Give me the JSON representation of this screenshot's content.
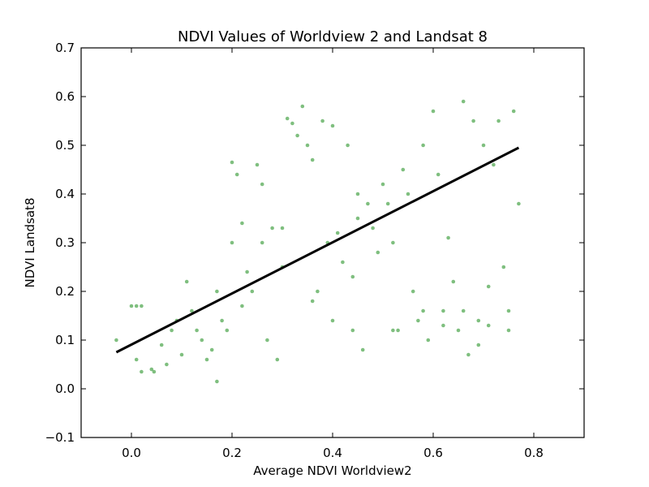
{
  "chart_data": {
    "type": "scatter",
    "title": "NDVI Values of Worldview 2 and Landsat 8",
    "xlabel": "Average NDVI Worldview2",
    "ylabel": "NDVI Landsat8",
    "xlim": [
      -0.1,
      0.9
    ],
    "ylim": [
      -0.1,
      0.7
    ],
    "xticks": [
      0.0,
      0.2,
      0.4,
      0.6,
      0.8
    ],
    "xtick_labels": [
      "0.0",
      "0.2",
      "0.4",
      "0.6",
      "0.8"
    ],
    "yticks": [
      -0.1,
      0.0,
      0.1,
      0.2,
      0.3,
      0.4,
      0.5,
      0.6,
      0.7
    ],
    "ytick_labels": [
      "−0.1",
      "0.0",
      "0.1",
      "0.2",
      "0.3",
      "0.4",
      "0.5",
      "0.6",
      "0.7"
    ],
    "grid": false,
    "legend": "none",
    "point_color": "#008000",
    "point_alpha": 0.5,
    "line_color": "#000000",
    "fit_line": {
      "x": [
        -0.03,
        0.77
      ],
      "y": [
        0.075,
        0.495
      ]
    },
    "series": [
      {
        "values": [
          [
            -0.03,
            0.1
          ],
          [
            0.0,
            0.17
          ],
          [
            0.01,
            0.17
          ],
          [
            0.02,
            0.17
          ],
          [
            0.04,
            0.04
          ],
          [
            0.01,
            0.06
          ],
          [
            0.02,
            0.035
          ],
          [
            0.045,
            0.035
          ],
          [
            0.06,
            0.09
          ],
          [
            0.07,
            0.05
          ],
          [
            0.08,
            0.12
          ],
          [
            0.09,
            0.14
          ],
          [
            0.1,
            0.07
          ],
          [
            0.11,
            0.22
          ],
          [
            0.12,
            0.16
          ],
          [
            0.13,
            0.12
          ],
          [
            0.14,
            0.1
          ],
          [
            0.15,
            0.06
          ],
          [
            0.16,
            0.08
          ],
          [
            0.17,
            0.015
          ],
          [
            0.17,
            0.2
          ],
          [
            0.18,
            0.14
          ],
          [
            0.19,
            0.12
          ],
          [
            0.2,
            0.465
          ],
          [
            0.21,
            0.44
          ],
          [
            0.2,
            0.3
          ],
          [
            0.22,
            0.17
          ],
          [
            0.23,
            0.24
          ],
          [
            0.24,
            0.2
          ],
          [
            0.25,
            0.46
          ],
          [
            0.26,
            0.42
          ],
          [
            0.27,
            0.1
          ],
          [
            0.28,
            0.33
          ],
          [
            0.29,
            0.06
          ],
          [
            0.3,
            0.25
          ],
          [
            0.31,
            0.555
          ],
          [
            0.32,
            0.545
          ],
          [
            0.33,
            0.52
          ],
          [
            0.34,
            0.58
          ],
          [
            0.35,
            0.5
          ],
          [
            0.36,
            0.47
          ],
          [
            0.37,
            0.2
          ],
          [
            0.38,
            0.55
          ],
          [
            0.39,
            0.3
          ],
          [
            0.4,
            0.54
          ],
          [
            0.41,
            0.32
          ],
          [
            0.42,
            0.26
          ],
          [
            0.43,
            0.5
          ],
          [
            0.44,
            0.23
          ],
          [
            0.45,
            0.35
          ],
          [
            0.46,
            0.08
          ],
          [
            0.47,
            0.38
          ],
          [
            0.48,
            0.33
          ],
          [
            0.49,
            0.28
          ],
          [
            0.5,
            0.42
          ],
          [
            0.51,
            0.38
          ],
          [
            0.52,
            0.3
          ],
          [
            0.53,
            0.12
          ],
          [
            0.54,
            0.45
          ],
          [
            0.55,
            0.4
          ],
          [
            0.56,
            0.2
          ],
          [
            0.57,
            0.14
          ],
          [
            0.58,
            0.5
          ],
          [
            0.6,
            0.57
          ],
          [
            0.61,
            0.44
          ],
          [
            0.62,
            0.16
          ],
          [
            0.63,
            0.31
          ],
          [
            0.64,
            0.22
          ],
          [
            0.65,
            0.12
          ],
          [
            0.66,
            0.59
          ],
          [
            0.67,
            0.07
          ],
          [
            0.68,
            0.55
          ],
          [
            0.69,
            0.14
          ],
          [
            0.7,
            0.5
          ],
          [
            0.71,
            0.13
          ],
          [
            0.72,
            0.46
          ],
          [
            0.73,
            0.55
          ],
          [
            0.74,
            0.25
          ],
          [
            0.75,
            0.16
          ],
          [
            0.76,
            0.57
          ],
          [
            0.77,
            0.38
          ],
          [
            0.75,
            0.12
          ],
          [
            0.62,
            0.13
          ],
          [
            0.59,
            0.1
          ],
          [
            0.69,
            0.09
          ],
          [
            0.71,
            0.21
          ],
          [
            0.52,
            0.12
          ],
          [
            0.45,
            0.4
          ],
          [
            0.3,
            0.33
          ],
          [
            0.22,
            0.34
          ],
          [
            0.26,
            0.3
          ],
          [
            0.36,
            0.18
          ],
          [
            0.4,
            0.14
          ],
          [
            0.44,
            0.12
          ],
          [
            0.58,
            0.16
          ],
          [
            0.66,
            0.16
          ]
        ]
      }
    ]
  }
}
